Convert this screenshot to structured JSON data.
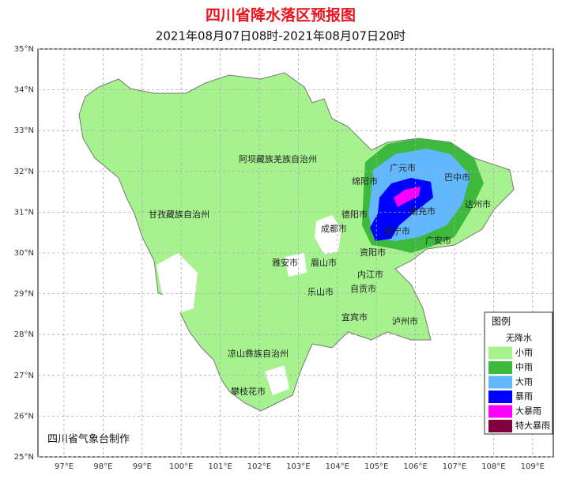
{
  "title": "四川省降水落区预报图",
  "subtitle": "2021年08月07日08时-2021年08月07日20时",
  "lat_labels": [
    "35°N",
    "34°N",
    "33°N",
    "32°N",
    "31°N",
    "30°N",
    "29°N",
    "28°N",
    "27°N",
    "26°N",
    "25°N"
  ],
  "lon_labels": [
    "97°E",
    "98°E",
    "99°E",
    "100°E",
    "101°E",
    "102°E",
    "103°E",
    "104°E",
    "105°E",
    "106°E",
    "107°E",
    "108°E",
    "109°E"
  ],
  "regions": [
    "阿坝藏族羌族自治州",
    "甘孜藏族自治州",
    "绵阳市",
    "广元市",
    "巴中市",
    "南充市",
    "达州市",
    "德阳市",
    "成都市",
    "遂宁市",
    "广安市",
    "雅安市",
    "眉山市",
    "资阳市",
    "内江市",
    "乐山市",
    "自贡市",
    "宜宾市",
    "泸州市",
    "凉山彝族自治州",
    "攀枝花市"
  ],
  "legend": {
    "title": "图例",
    "items": [
      {
        "label": "无降水",
        "color": "#ffffff"
      },
      {
        "label": "小雨",
        "color": "#a6f28f"
      },
      {
        "label": "中雨",
        "color": "#3dba3d"
      },
      {
        "label": "大雨",
        "color": "#61b8ff"
      },
      {
        "label": "暴雨",
        "color": "#0000fe"
      },
      {
        "label": "大暴雨",
        "color": "#fa00fa"
      },
      {
        "label": "特大暴雨",
        "color": "#800040"
      }
    ]
  },
  "footer": "四川省气象台制作"
}
